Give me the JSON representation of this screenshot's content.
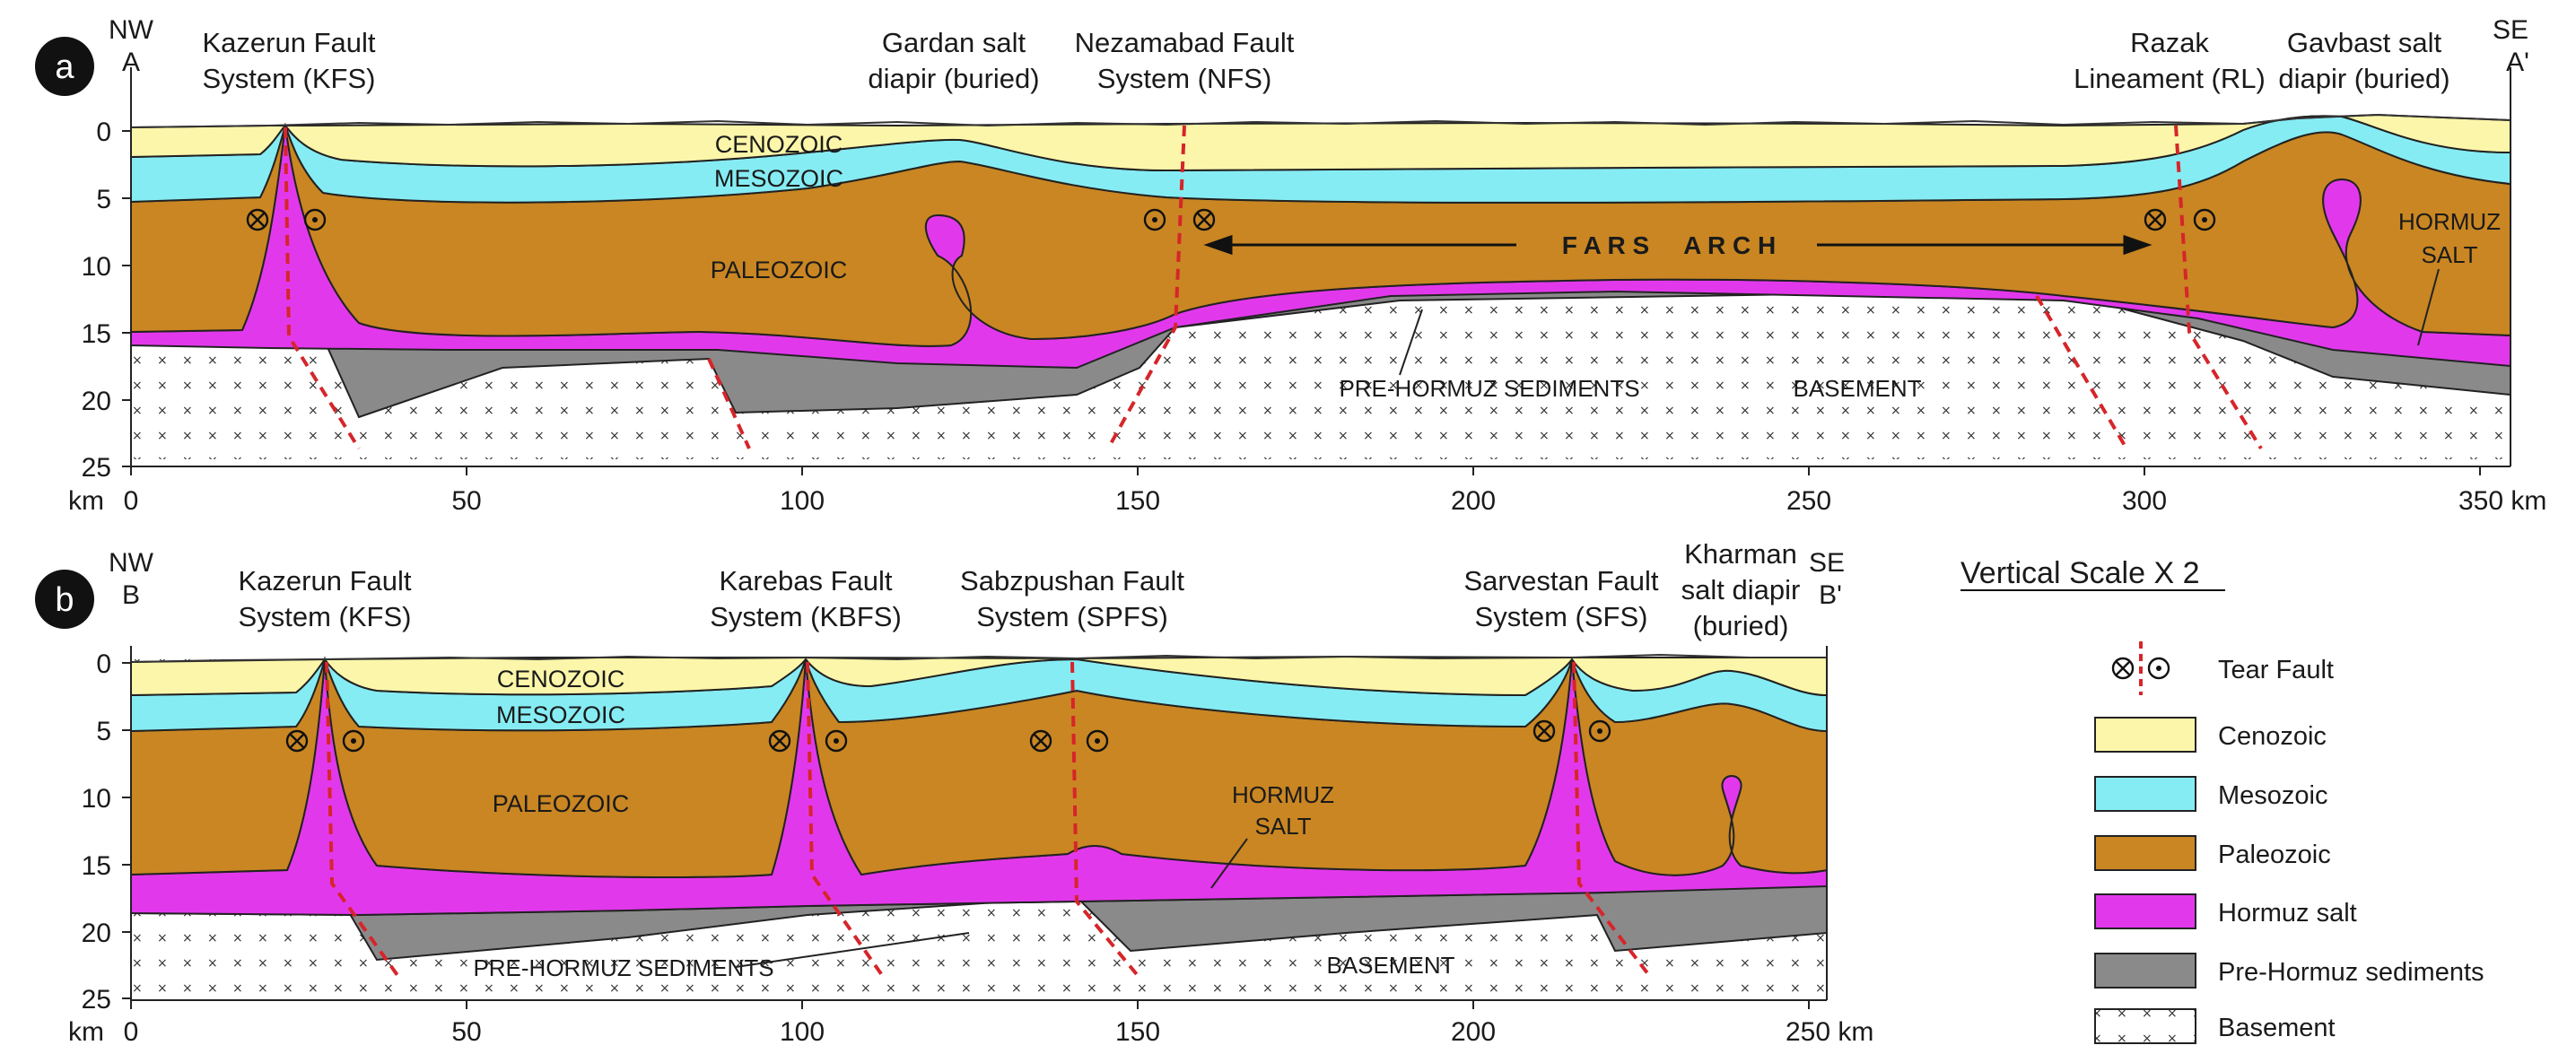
{
  "colors": {
    "cenozoic": "#fbf6a9",
    "mesozoic": "#86ecf3",
    "paleozoic": "#c98622",
    "hormuz_salt": "#e238ec",
    "pre_hormuz": "#8a8a8a",
    "basement": "#ffffff",
    "fault": "#d6252a"
  },
  "section_a": {
    "badge": "a",
    "left_dir": "NW",
    "left_id": "A",
    "right_dir": "SE",
    "right_id": "A'",
    "depth_ticks": [
      "0",
      "5",
      "10",
      "15",
      "20",
      "25"
    ],
    "distance_ticks": [
      "0",
      "50",
      "100",
      "150",
      "200",
      "250",
      "300"
    ],
    "distance_last": "350 km",
    "km_label": "km",
    "labels": {
      "kfs_l1": "Kazerun Fault",
      "kfs_l2": "System (KFS)",
      "gardan_l1": "Gardan salt",
      "gardan_l2": "diapir (buried)",
      "nfs_l1": "Nezamabad Fault",
      "nfs_l2": "System (NFS)",
      "razak_l1": "Razak",
      "razak_l2": "Lineament (RL)",
      "gavbast_l1": "Gavbast salt",
      "gavbast_l2": "diapir (buried)",
      "cenozoic": "CENOZOIC",
      "mesozoic": "MESOZOIC",
      "paleozoic": "PALEOZOIC",
      "fars_arch": "F A R S     A R C H",
      "hormuz_l1": "HORMUZ",
      "hormuz_l2": "SALT",
      "pre_hormuz": "PRE-HORMUZ SEDIMENTS",
      "basement": "BASEMENT"
    }
  },
  "section_b": {
    "badge": "b",
    "left_dir": "NW",
    "left_id": "B",
    "right_dir": "SE",
    "right_id": "B'",
    "depth_ticks": [
      "0",
      "5",
      "10",
      "15",
      "20",
      "25"
    ],
    "distance_ticks": [
      "0",
      "50",
      "100",
      "150",
      "200"
    ],
    "distance_last": "250 km",
    "km_label": "km",
    "labels": {
      "kfs_l1": "Kazerun Fault",
      "kfs_l2": "System (KFS)",
      "kbfs_l1": "Karebas Fault",
      "kbfs_l2": "System (KBFS)",
      "spfs_l1": "Sabzpushan Fault",
      "spfs_l2": "System (SPFS)",
      "sfs_l1": "Sarvestan Fault",
      "sfs_l2": "System (SFS)",
      "kharman_l1": "Kharman",
      "kharman_l2": "salt diapir",
      "kharman_l3": "(buried)",
      "cenozoic": "CENOZOIC",
      "mesozoic": "MESOZOIC",
      "paleozoic": "PALEOZOIC",
      "hormuz_l1": "HORMUZ",
      "hormuz_l2": "SALT",
      "pre_hormuz": "PRE-HORMUZ SEDIMENTS",
      "basement": "BASEMENT"
    }
  },
  "legend": {
    "title": "Vertical Scale X 2",
    "items": [
      {
        "label": "Tear Fault",
        "icon": "tear-fault-icon"
      },
      {
        "label": "Cenozoic",
        "icon": "cenozoic-swatch"
      },
      {
        "label": "Mesozoic",
        "icon": "mesozoic-swatch"
      },
      {
        "label": "Paleozoic",
        "icon": "paleozoic-swatch"
      },
      {
        "label": "Hormuz salt",
        "icon": "hormuz-salt-swatch"
      },
      {
        "label": "Pre-Hormuz sediments",
        "icon": "pre-hormuz-swatch"
      },
      {
        "label": "Basement",
        "icon": "basement-swatch"
      }
    ]
  }
}
